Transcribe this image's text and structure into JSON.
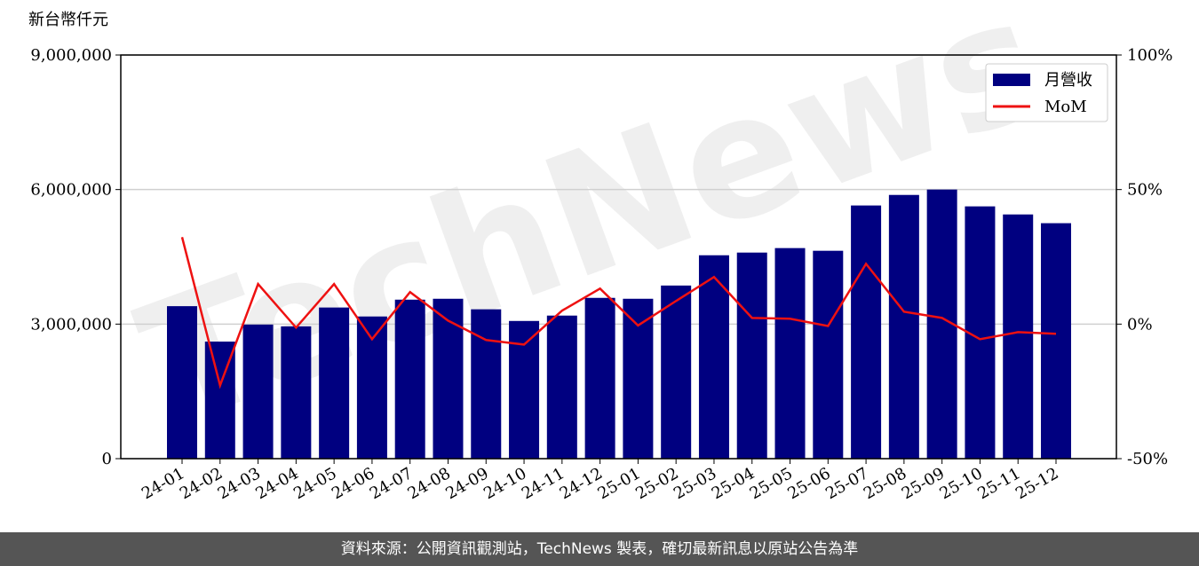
{
  "chart_data": {
    "type": "bar-line",
    "unit_label": "新台幣仟元",
    "watermark": "TechNews",
    "source": "資料來源：公開資訊觀測站，TechNews 製表，確切最新訊息以原站公告為準",
    "categories": [
      "24-01",
      "24-02",
      "24-03",
      "24-04",
      "24-05",
      "24-06",
      "24-07",
      "24-08",
      "24-09",
      "24-10",
      "24-11",
      "24-12",
      "25-01",
      "25-02",
      "25-03",
      "25-04",
      "25-05",
      "25-06",
      "25-07",
      "25-08",
      "25-09",
      "25-10",
      "25-11",
      "25-12"
    ],
    "series": [
      {
        "name": "月營收",
        "type": "bar",
        "color": "#000080",
        "values": [
          3400000,
          2610000,
          2990000,
          2950000,
          3370000,
          3170000,
          3545000,
          3565000,
          3330000,
          3070000,
          3190000,
          3585000,
          3565000,
          3860000,
          4535000,
          4595000,
          4695000,
          4635000,
          5645000,
          5880000,
          6000000,
          5625000,
          5445000,
          5250000
        ]
      },
      {
        "name": "MoM",
        "type": "line",
        "axis": "y2",
        "color": "#ee1111",
        "values": [
          32.3,
          -22.8,
          14.9,
          -1.3,
          14.9,
          -5.6,
          11.9,
          1.3,
          -5.9,
          -7.6,
          5.0,
          13.2,
          -0.5,
          8.6,
          17.5,
          2.3,
          2.0,
          -0.7,
          22.4,
          4.6,
          2.3,
          -5.6,
          -3.0,
          -3.6
        ]
      }
    ],
    "ylim": [
      0,
      9000000
    ],
    "yticks": [
      0,
      {
        "value": 3000000,
        "label": "3,000,000"
      },
      {
        "value": 6000000,
        "label": "6,000,000"
      },
      {
        "value": 9000000,
        "label": "9,000,000"
      }
    ],
    "y2lim": [
      -50,
      100
    ],
    "y2ticks": [
      {
        "value": -50,
        "label": "-50%"
      },
      {
        "value": 0,
        "label": "0%"
      },
      {
        "value": 50,
        "label": "50%"
      },
      {
        "value": 100,
        "label": "100%"
      }
    ],
    "grid": true,
    "legend": "upper right"
  }
}
